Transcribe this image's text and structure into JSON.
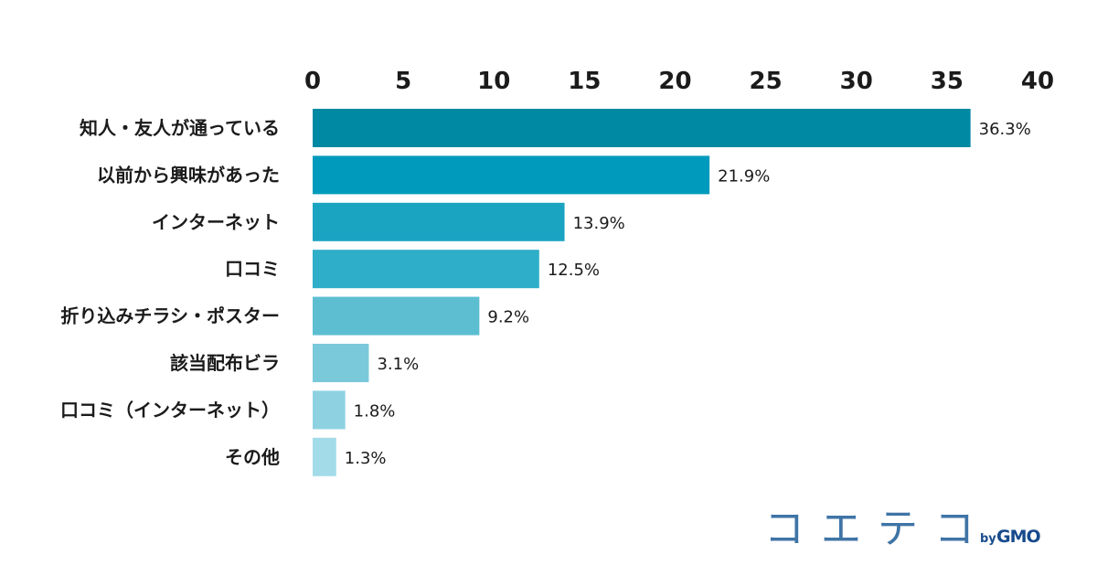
{
  "chart_data": {
    "type": "bar",
    "orientation": "horizontal",
    "categories": [
      "知人・友人が通っている",
      "以前から興味があった",
      "インターネット",
      "口コミ",
      "折り込みチラシ・ポスター",
      "該当配布ビラ",
      "口コミ（インターネット）",
      "その他"
    ],
    "values": [
      36.3,
      21.9,
      13.9,
      12.5,
      9.2,
      3.1,
      1.8,
      1.3
    ],
    "value_labels": [
      "36.3%",
      "21.9%",
      "13.9%",
      "12.5%",
      "9.2%",
      "3.1%",
      "1.8%",
      "1.3%"
    ],
    "bar_colors": [
      "#0089a3",
      "#009bbc",
      "#1aa4c2",
      "#2eaec8",
      "#5dbed2",
      "#7ac9db",
      "#8ed2e2",
      "#a4dbe8"
    ],
    "x_ticks": [
      "0",
      "5",
      "10",
      "15",
      "20",
      "25",
      "30",
      "35",
      "40"
    ],
    "xlim": [
      0,
      40
    ],
    "axis_position": "top",
    "grid": false,
    "title": "",
    "xlabel": "",
    "ylabel": ""
  },
  "logo": {
    "main": "コエテコ",
    "by": "by",
    "brand": "GMO",
    "main_color": "#3f74a6",
    "brand_color": "#174b8c"
  }
}
